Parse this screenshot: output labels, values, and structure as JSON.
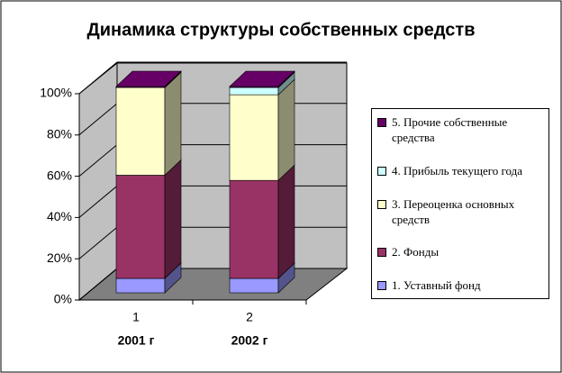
{
  "chart_data": {
    "type": "stacked-bar-3d",
    "title": "Динамика структуры собственных средств",
    "categories": [
      "1",
      "2"
    ],
    "periods": [
      "2001 г",
      "2002 г"
    ],
    "series": [
      {
        "name": "1. Уставный фонд",
        "color": "#9999ff",
        "values": [
          7,
          7
        ]
      },
      {
        "name": "2. Фонды",
        "color": "#993366",
        "values": [
          50,
          47.5
        ]
      },
      {
        "name": "3. Переоценка основных средств",
        "color": "#ffffcc",
        "values": [
          42.5,
          41.5
        ]
      },
      {
        "name": "4. Прибыль текущего года",
        "color": "#ccffff",
        "values": [
          0,
          3.5
        ]
      },
      {
        "name": "5. Прочие собственные средства",
        "color": "#660066",
        "values": [
          0.5,
          0.5
        ]
      }
    ],
    "ylim": [
      0,
      100
    ],
    "yticks": [
      {
        "value": 0,
        "label": "0%"
      },
      {
        "value": 20,
        "label": "20%"
      },
      {
        "value": 40,
        "label": "40%"
      },
      {
        "value": 60,
        "label": "60%"
      },
      {
        "value": 80,
        "label": "80%"
      },
      {
        "value": 100,
        "label": "100%"
      }
    ],
    "grid": true
  }
}
